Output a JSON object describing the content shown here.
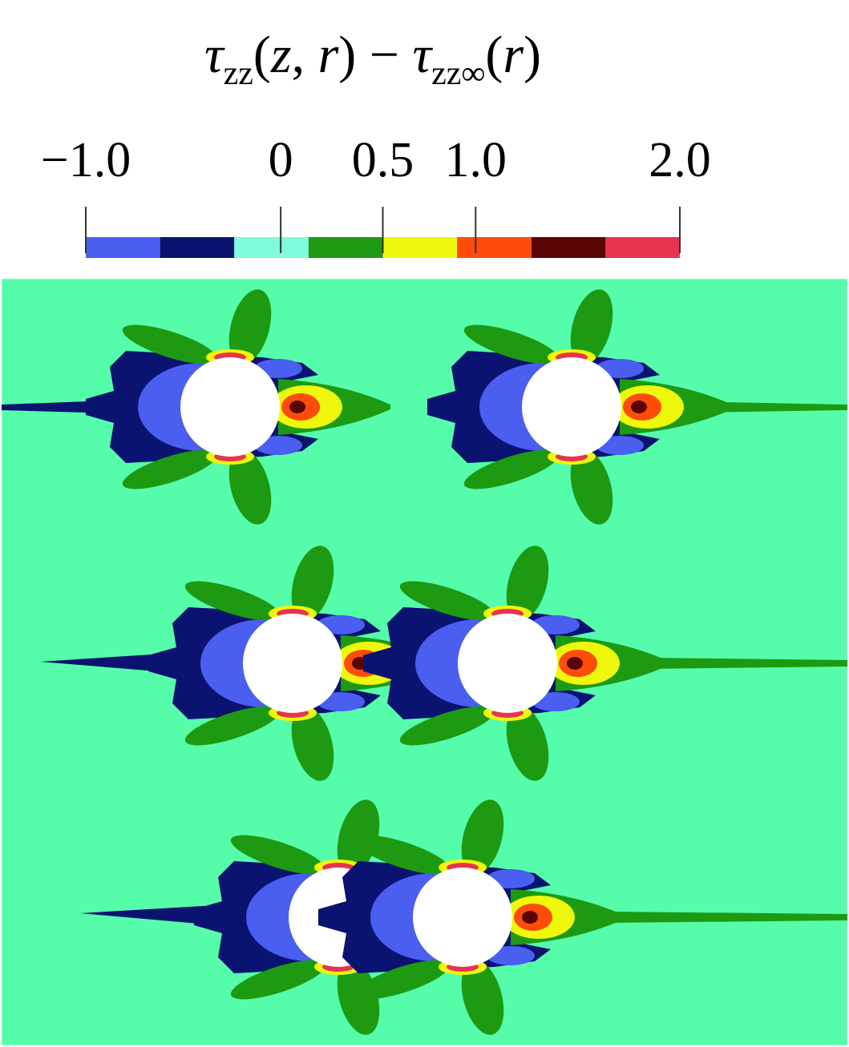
{
  "chart_data": {
    "type": "contour",
    "title_parts": [
      {
        "text": "τ",
        "form": "italic"
      },
      {
        "text": "zz",
        "form": "sub"
      },
      {
        "text": "(",
        "form": "plain"
      },
      {
        "text": "z",
        "form": "italic"
      },
      {
        "text": ", ",
        "form": "plain"
      },
      {
        "text": "r",
        "form": "italic"
      },
      {
        "text": ") − ",
        "form": "plain"
      },
      {
        "text": "τ",
        "form": "italic"
      },
      {
        "text": "zz∞",
        "form": "sub"
      },
      {
        "text": "(",
        "form": "plain"
      },
      {
        "text": "r",
        "form": "italic"
      },
      {
        "text": ")",
        "form": "plain"
      }
    ],
    "colorbar": {
      "boundaries": [
        -1.0,
        -0.6,
        -0.25,
        0.15,
        0.5,
        0.9,
        1.3,
        1.6,
        2.0
      ],
      "colors": [
        "#4a5ef0",
        "#0a1370",
        "#80fadc",
        "#1e9a12",
        "#eef70c",
        "#fe4d0b",
        "#5a0505",
        "#e8334f"
      ],
      "ticks": [
        {
          "value": -1.0,
          "label": "−1.0"
        },
        0,
        0.5,
        {
          "value": 1.0,
          "label": "1.0"
        },
        {
          "value": 2.0,
          "label": "2.0"
        }
      ]
    },
    "background_color": "#55fdab"
  }
}
